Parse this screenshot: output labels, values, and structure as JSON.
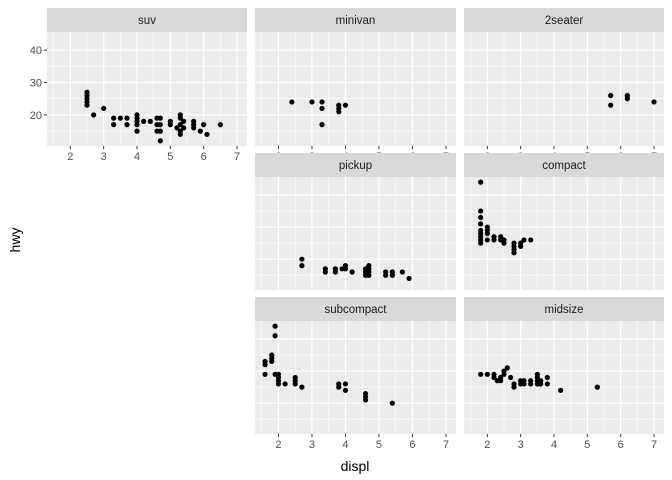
{
  "chart_data": {
    "type": "scatter",
    "xlabel": "displ",
    "ylabel": "hwy",
    "xlim": [
      1.3,
      7.3
    ],
    "ylim": [
      10.4,
      45.6
    ],
    "x_ticks": [
      2,
      3,
      4,
      5,
      6,
      7
    ],
    "y_ticks": [
      20,
      30,
      40
    ],
    "grid": true,
    "panels": [
      {
        "name": "suv",
        "points": [
          [
            2.5,
            26
          ],
          [
            2.5,
            27
          ],
          [
            2.5,
            25
          ],
          [
            2.5,
            24
          ],
          [
            2.5,
            23
          ],
          [
            2.7,
            20
          ],
          [
            3.0,
            22
          ],
          [
            3.3,
            19
          ],
          [
            3.3,
            17
          ],
          [
            3.5,
            19
          ],
          [
            3.7,
            19
          ],
          [
            3.7,
            17
          ],
          [
            4.0,
            20
          ],
          [
            4.0,
            19
          ],
          [
            4.0,
            18
          ],
          [
            4.0,
            17
          ],
          [
            4.0,
            15
          ],
          [
            4.2,
            18
          ],
          [
            4.4,
            18
          ],
          [
            4.6,
            19
          ],
          [
            4.6,
            17
          ],
          [
            4.6,
            15
          ],
          [
            4.7,
            19
          ],
          [
            4.7,
            17
          ],
          [
            4.7,
            15
          ],
          [
            4.7,
            12
          ],
          [
            5.0,
            18
          ],
          [
            5.0,
            17
          ],
          [
            5.2,
            16
          ],
          [
            5.3,
            20
          ],
          [
            5.3,
            19
          ],
          [
            5.3,
            17
          ],
          [
            5.3,
            15
          ],
          [
            5.3,
            14
          ],
          [
            5.4,
            18
          ],
          [
            5.4,
            16
          ],
          [
            5.7,
            18
          ],
          [
            5.7,
            17
          ],
          [
            5.7,
            16
          ],
          [
            5.9,
            15
          ],
          [
            6.0,
            17
          ],
          [
            6.1,
            14
          ],
          [
            6.5,
            17
          ]
        ]
      },
      {
        "name": "minivan",
        "points": [
          [
            2.4,
            24
          ],
          [
            3.0,
            24
          ],
          [
            3.3,
            24
          ],
          [
            3.3,
            22
          ],
          [
            3.3,
            17
          ],
          [
            3.8,
            23
          ],
          [
            3.8,
            22
          ],
          [
            3.8,
            21
          ],
          [
            4.0,
            23
          ]
        ]
      },
      {
        "name": "2seater",
        "points": [
          [
            5.7,
            26
          ],
          [
            5.7,
            23
          ],
          [
            6.2,
            26
          ],
          [
            6.2,
            25
          ],
          [
            7.0,
            24
          ]
        ]
      },
      {
        "name": "pickup",
        "points": [
          [
            2.7,
            20
          ],
          [
            2.7,
            18
          ],
          [
            3.4,
            17
          ],
          [
            3.4,
            16
          ],
          [
            3.7,
            17
          ],
          [
            3.7,
            16
          ],
          [
            3.9,
            17
          ],
          [
            4.0,
            18
          ],
          [
            4.0,
            17
          ],
          [
            4.2,
            16
          ],
          [
            4.6,
            17
          ],
          [
            4.6,
            16
          ],
          [
            4.6,
            15
          ],
          [
            4.7,
            18
          ],
          [
            4.7,
            17
          ],
          [
            4.7,
            16
          ],
          [
            4.7,
            15
          ],
          [
            5.2,
            16
          ],
          [
            5.2,
            15
          ],
          [
            5.4,
            16
          ],
          [
            5.4,
            15
          ],
          [
            5.7,
            16
          ],
          [
            5.9,
            14
          ]
        ]
      },
      {
        "name": "compact",
        "points": [
          [
            1.8,
            44
          ],
          [
            1.8,
            35
          ],
          [
            1.8,
            33
          ],
          [
            1.8,
            31
          ],
          [
            1.8,
            29
          ],
          [
            1.8,
            28
          ],
          [
            1.8,
            27
          ],
          [
            1.8,
            26
          ],
          [
            1.8,
            25
          ],
          [
            2.0,
            30
          ],
          [
            2.0,
            29
          ],
          [
            2.0,
            28
          ],
          [
            2.0,
            26
          ],
          [
            2.2,
            27
          ],
          [
            2.2,
            26
          ],
          [
            2.4,
            27
          ],
          [
            2.4,
            26
          ],
          [
            2.5,
            26
          ],
          [
            2.5,
            25
          ],
          [
            2.8,
            25
          ],
          [
            2.8,
            24
          ],
          [
            2.8,
            23
          ],
          [
            2.8,
            22
          ],
          [
            3.0,
            25
          ],
          [
            3.0,
            24
          ],
          [
            3.1,
            26
          ],
          [
            3.3,
            26
          ]
        ]
      },
      {
        "name": "subcompact",
        "points": [
          [
            1.6,
            33
          ],
          [
            1.6,
            32
          ],
          [
            1.6,
            29
          ],
          [
            1.8,
            35
          ],
          [
            1.8,
            34
          ],
          [
            1.8,
            33
          ],
          [
            1.9,
            41
          ],
          [
            1.9,
            44
          ],
          [
            1.9,
            29
          ],
          [
            2.0,
            29
          ],
          [
            2.0,
            28
          ],
          [
            2.0,
            27
          ],
          [
            2.0,
            26
          ],
          [
            2.2,
            26
          ],
          [
            2.5,
            28
          ],
          [
            2.5,
            27
          ],
          [
            2.5,
            26
          ],
          [
            2.7,
            25
          ],
          [
            3.8,
            26
          ],
          [
            3.8,
            25
          ],
          [
            4.0,
            26
          ],
          [
            4.0,
            24
          ],
          [
            4.6,
            23
          ],
          [
            4.6,
            22
          ],
          [
            4.6,
            21
          ],
          [
            5.4,
            20
          ]
        ]
      },
      {
        "name": "midsize",
        "points": [
          [
            1.8,
            29
          ],
          [
            2.0,
            29
          ],
          [
            2.2,
            28
          ],
          [
            2.2,
            29
          ],
          [
            2.3,
            27
          ],
          [
            2.4,
            28
          ],
          [
            2.4,
            27
          ],
          [
            2.5,
            29
          ],
          [
            2.5,
            30
          ],
          [
            2.6,
            31
          ],
          [
            2.7,
            28
          ],
          [
            2.8,
            26
          ],
          [
            2.8,
            25
          ],
          [
            3.0,
            27
          ],
          [
            3.0,
            26
          ],
          [
            3.1,
            26
          ],
          [
            3.1,
            27
          ],
          [
            3.3,
            27
          ],
          [
            3.3,
            26
          ],
          [
            3.5,
            29
          ],
          [
            3.5,
            28
          ],
          [
            3.5,
            27
          ],
          [
            3.5,
            26
          ],
          [
            3.6,
            27
          ],
          [
            3.6,
            26
          ],
          [
            3.8,
            28
          ],
          [
            3.8,
            26
          ],
          [
            4.2,
            24
          ],
          [
            5.3,
            25
          ]
        ]
      }
    ]
  }
}
